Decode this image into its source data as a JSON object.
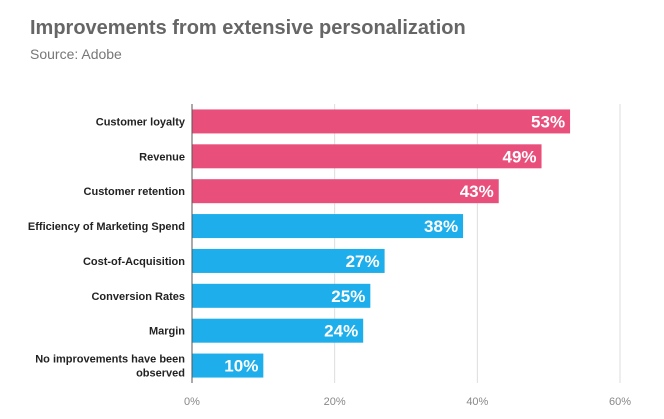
{
  "chart_data": {
    "type": "bar",
    "orientation": "horizontal",
    "title": "Improvements from extensive personalization",
    "subtitle": "Source: Adobe",
    "categories": [
      "Customer loyalty",
      "Revenue",
      "Customer retention",
      "Efficiency of Marketing Spend",
      "Cost-of-Acquisition",
      "Conversion Rates",
      "Margin",
      "No improvements have been observed"
    ],
    "values": [
      53,
      49,
      43,
      38,
      27,
      25,
      24,
      10
    ],
    "data_labels": [
      "53%",
      "49%",
      "43%",
      "38%",
      "27%",
      "25%",
      "24%",
      "10%"
    ],
    "colors": [
      "#E94F7B",
      "#E94F7B",
      "#E94F7B",
      "#1DAEEB",
      "#1DAEEB",
      "#1DAEEB",
      "#1DAEEB",
      "#1DAEEB"
    ],
    "xlim": [
      0,
      60
    ],
    "xticks": [
      0,
      20,
      40,
      60
    ],
    "xtick_labels": [
      "0%",
      "20%",
      "40%",
      "60%"
    ],
    "grid": true,
    "xlabel": "",
    "ylabel": ""
  }
}
